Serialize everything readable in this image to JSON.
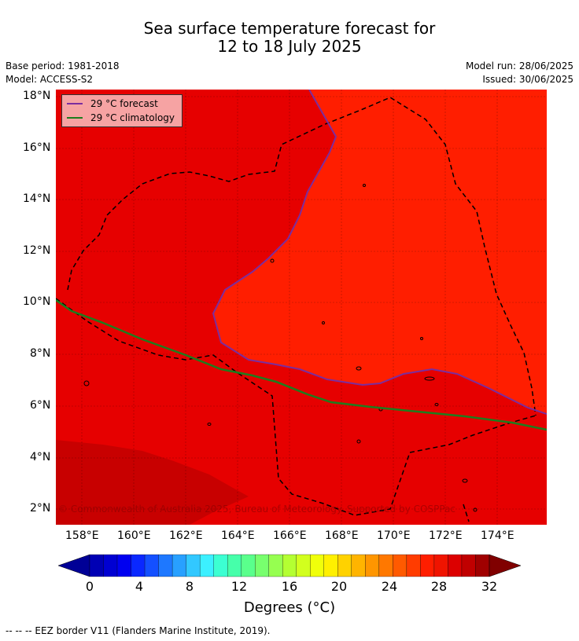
{
  "title_line1": "Sea surface temperature forecast for",
  "title_line2": "12 to 18 July 2025",
  "base_period": "Base period: 1981-2018",
  "model": "Model: ACCESS-S2",
  "model_run": "Model run: 28/06/2025",
  "issued": "Issued: 30/06/2025",
  "legend": {
    "forecast": "29 °C  forecast",
    "climatology": "29 °C  climatology",
    "forecast_color": "#7b2d9e",
    "climatology_color": "#1e7d1e"
  },
  "watermark": "© Commonwealth of Australia 2025, Bureau of Meteorology. Supported by COSPPac",
  "lat_labels": [
    "18°N",
    "16°N",
    "14°N",
    "12°N",
    "10°N",
    "8°N",
    "6°N",
    "4°N",
    "2°N"
  ],
  "lon_labels": [
    "158°E",
    "160°E",
    "162°E",
    "164°E",
    "166°E",
    "168°E",
    "170°E",
    "172°E",
    "174°E"
  ],
  "colorbar": {
    "title": "Degrees (°C)",
    "ticks": [
      "0",
      "4",
      "8",
      "12",
      "16",
      "20",
      "24",
      "28",
      "32"
    ],
    "colors": [
      "#000096",
      "#0000b4",
      "#0000d2",
      "#0000f0",
      "#0a28ff",
      "#1450ff",
      "#1e78ff",
      "#28a0ff",
      "#32c8ff",
      "#3cf0ff",
      "#3cffd2",
      "#46ffaa",
      "#5aff8c",
      "#78ff6e",
      "#96ff50",
      "#b4ff32",
      "#d2ff1e",
      "#f0ff0a",
      "#fff000",
      "#ffd200",
      "#ffb400",
      "#ff9600",
      "#ff7800",
      "#ff5a00",
      "#ff3c00",
      "#ff1e00",
      "#f01400",
      "#dc0000",
      "#c00000",
      "#a00000",
      "#800000"
    ]
  },
  "map_colors": {
    "warm": "#ff1e00",
    "mid": "#e60000",
    "cool": "#c80000"
  },
  "footer": "-- -- -- EEZ border V11 (Flanders Marine Institute, 2019)."
}
